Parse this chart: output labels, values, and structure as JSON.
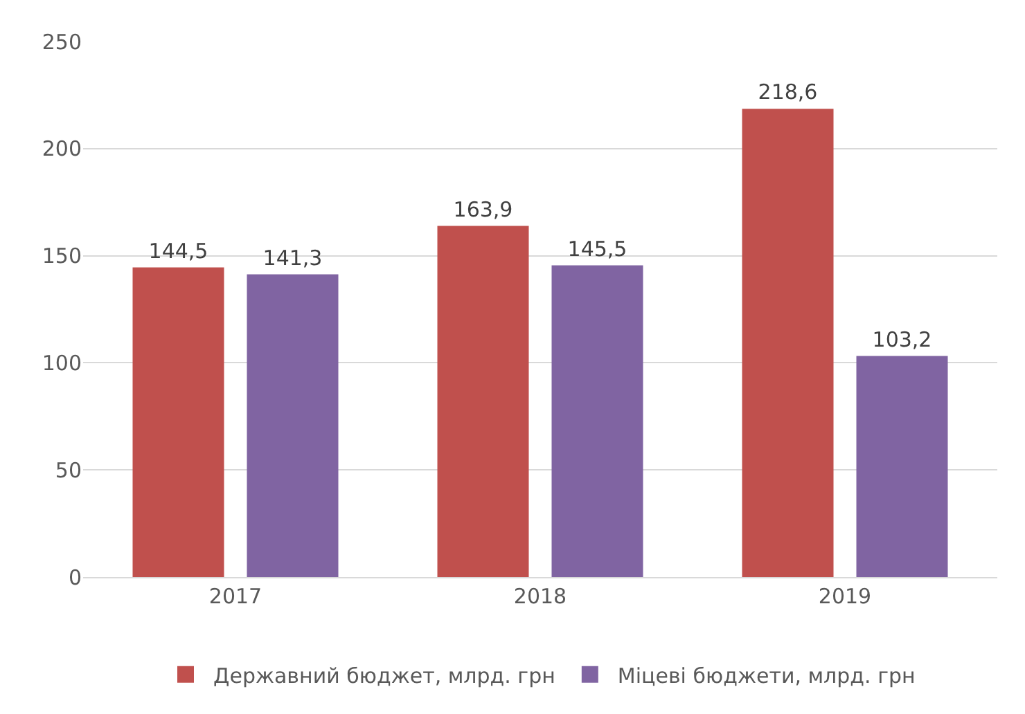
{
  "chart_data": {
    "type": "bar",
    "categories": [
      "2017",
      "2018",
      "2019"
    ],
    "series": [
      {
        "name": "Державний бюджет, млрд. грн",
        "color": "#c0504d",
        "values": [
          144.5,
          163.9,
          218.6
        ],
        "value_labels": [
          "144,5",
          "163,9",
          "218,6"
        ]
      },
      {
        "name": "Міцеві бюджети, млрд. грн",
        "color": "#8064a2",
        "values": [
          141.3,
          145.5,
          103.2
        ],
        "value_labels": [
          "141,3",
          "145,5",
          "103,2"
        ]
      }
    ],
    "ylim": [
      0,
      250
    ],
    "yticks": [
      0,
      50,
      100,
      150,
      200,
      250
    ],
    "grid": "y",
    "legend": "bottom"
  }
}
